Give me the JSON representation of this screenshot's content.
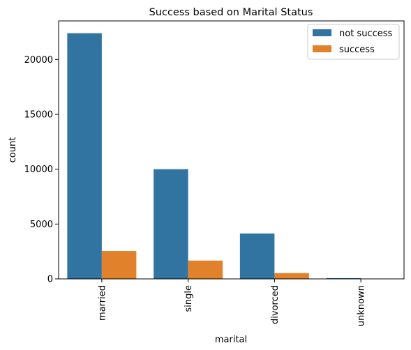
{
  "chart_data": {
    "type": "bar",
    "title": "Success based on Marital Status",
    "xlabel": "marital",
    "ylabel": "count",
    "categories": [
      "married",
      "single",
      "divorced",
      "unknown"
    ],
    "series": [
      {
        "name": "not success",
        "color": "#3274a1",
        "values": [
          22400,
          10000,
          4140,
          70
        ]
      },
      {
        "name": "success",
        "color": "#e1812c",
        "values": [
          2540,
          1670,
          530,
          10
        ]
      }
    ],
    "yticks": [
      0,
      5000,
      10000,
      15000,
      20000
    ],
    "ylim": [
      0,
      23520
    ],
    "grid": false,
    "legend_position": "top-right"
  }
}
